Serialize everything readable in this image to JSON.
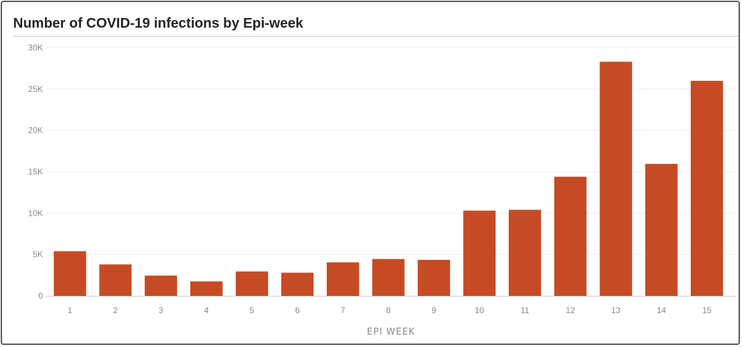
{
  "chart_data": {
    "type": "bar",
    "title": "Number of COVID-19 infections by Epi-week",
    "xlabel": "EPI WEEK",
    "ylabel": "",
    "categories": [
      "1",
      "2",
      "3",
      "4",
      "5",
      "6",
      "7",
      "8",
      "9",
      "10",
      "11",
      "12",
      "13",
      "14",
      "15"
    ],
    "values": [
      5400,
      3800,
      2450,
      1750,
      2950,
      2800,
      4050,
      4450,
      4350,
      10300,
      10400,
      14400,
      28300,
      15950,
      26000
    ],
    "ylim": [
      0,
      30000
    ],
    "yticks": [
      0,
      5000,
      10000,
      15000,
      20000,
      25000,
      30000
    ],
    "ytick_labels": [
      "0",
      "5K",
      "10K",
      "15K",
      "20K",
      "25K",
      "30K"
    ],
    "grid": true,
    "legend": "none",
    "colors": {
      "bar": "#c64b24",
      "gridline": "#ececec",
      "axis": "#c8c8c8",
      "text": "#8a8886",
      "title": "#252423"
    }
  }
}
